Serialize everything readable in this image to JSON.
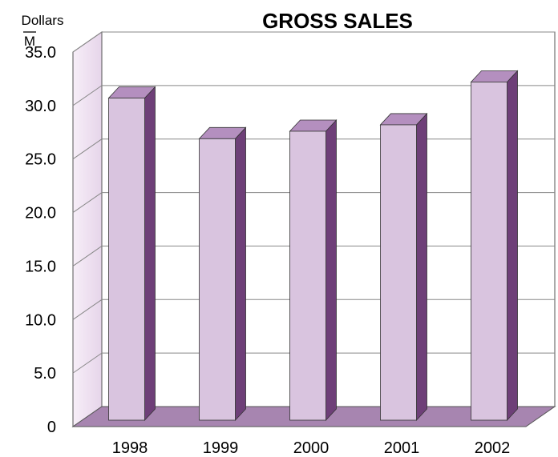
{
  "chart_data": {
    "type": "bar",
    "title": "GROSS SALES",
    "ylabel": "Dollars",
    "yunit": "M",
    "categories": [
      "1998",
      "1999",
      "2000",
      "2001",
      "2002"
    ],
    "values": [
      30.1,
      26.3,
      27.0,
      27.6,
      31.6
    ],
    "ylim": [
      0,
      35
    ],
    "yticks": [
      "0",
      "5.0",
      "10.0",
      "15.0",
      "20.0",
      "25.0",
      "30.0",
      "35.0"
    ],
    "ytick_values": [
      0,
      5,
      10,
      15,
      20,
      25,
      30,
      35
    ],
    "grid": true,
    "style": "3d-column",
    "colors": {
      "bar_front": "#d9c4df",
      "bar_top": "#b48fbf",
      "bar_side": "#6e3f78",
      "floor": "#a785b0",
      "wall": "#efe3f1",
      "grid": "#888888"
    }
  }
}
